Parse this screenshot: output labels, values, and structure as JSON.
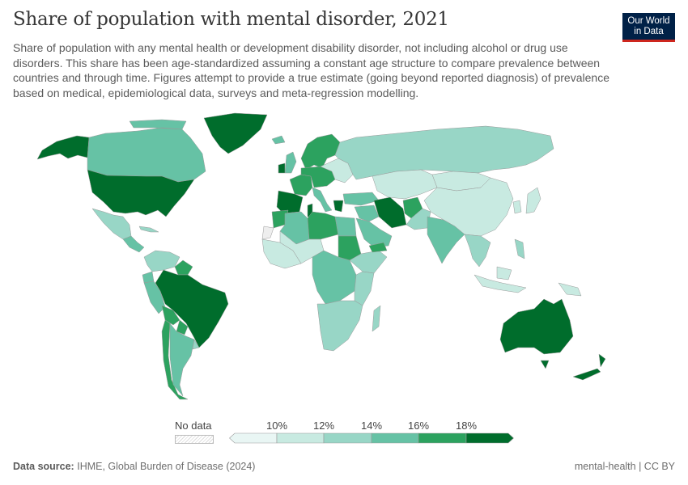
{
  "header": {
    "title": "Share of population with mental disorder, 2021",
    "subtitle": "Share of population with any mental health or development disability disorder, not including alcohol or drug use disorders. This share has been age-standardized assuming a constant age structure to compare prevalence between countries and through time. Figures attempt to provide a true estimate (going beyond reported diagnosis) of prevalence based on medical, epidemiological data, surveys and meta-regression modelling.",
    "logo_line1": "Our World",
    "logo_line2": "in Data"
  },
  "legend": {
    "no_data_label": "No data",
    "no_data_color": "#eeeeee",
    "ticks": [
      "10%",
      "12%",
      "14%",
      "16%",
      "18%"
    ],
    "bins": [
      {
        "color": "#e9f6f4"
      },
      {
        "color": "#c8eae1"
      },
      {
        "color": "#98d6c6"
      },
      {
        "color": "#66c2a5"
      },
      {
        "color": "#2ca25f"
      },
      {
        "color": "#006d2c"
      }
    ]
  },
  "region_bins": [
    5,
    3,
    5,
    5,
    2,
    3,
    2,
    2,
    4,
    3,
    3,
    5,
    4,
    4,
    4,
    3,
    2,
    3,
    4,
    3,
    5,
    4,
    5,
    4,
    3,
    1,
    5,
    2,
    1,
    1,
    1,
    1,
    1,
    3,
    3,
    5,
    4,
    2,
    3,
    2,
    1,
    2,
    1,
    4,
    3,
    5,
    4,
    3,
    -1,
    1,
    1,
    4,
    2,
    3,
    2,
    2,
    2,
    3,
    4,
    5,
    5
  ],
  "footer": {
    "source_label": "Data source:",
    "source_text": "IHME, Global Burden of Disease (2024)",
    "right_text": "mental-health | CC BY"
  }
}
